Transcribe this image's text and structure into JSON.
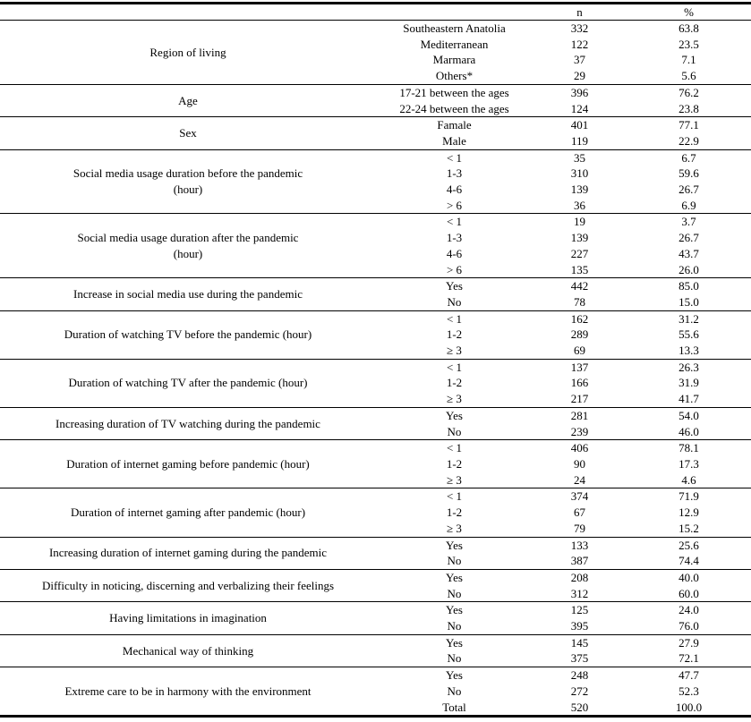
{
  "table": {
    "header": {
      "col_n": "n",
      "col_pct": "%"
    },
    "groups": [
      {
        "category": "Region of living",
        "rows": [
          {
            "label": "Southeastern Anatolia",
            "n": "332",
            "pct": "63.8"
          },
          {
            "label": "Mediterranean",
            "n": "122",
            "pct": "23.5"
          },
          {
            "label": "Marmara",
            "n": "37",
            "pct": "7.1"
          },
          {
            "label": "Others*",
            "n": "29",
            "pct": "5.6"
          }
        ]
      },
      {
        "category": "Age",
        "rows": [
          {
            "label": "17-21 between the ages",
            "n": "396",
            "pct": "76.2"
          },
          {
            "label": "22-24 between the ages",
            "n": "124",
            "pct": "23.8"
          }
        ]
      },
      {
        "category": "Sex",
        "rows": [
          {
            "label": "Famale",
            "n": "401",
            "pct": "77.1"
          },
          {
            "label": "Male",
            "n": "119",
            "pct": "22.9"
          }
        ]
      },
      {
        "category": "Social media usage duration before the pandemic\n(hour)",
        "rows": [
          {
            "label": "< 1",
            "n": "35",
            "pct": "6.7"
          },
          {
            "label": "1-3",
            "n": "310",
            "pct": "59.6"
          },
          {
            "label": "4-6",
            "n": "139",
            "pct": "26.7"
          },
          {
            "label": "> 6",
            "n": "36",
            "pct": "6.9"
          }
        ]
      },
      {
        "category": "Social media usage duration after the pandemic\n(hour)",
        "rows": [
          {
            "label": "< 1",
            "n": "19",
            "pct": "3.7"
          },
          {
            "label": "1-3",
            "n": "139",
            "pct": "26.7"
          },
          {
            "label": "4-6",
            "n": "227",
            "pct": "43.7"
          },
          {
            "label": "> 6",
            "n": "135",
            "pct": "26.0"
          }
        ]
      },
      {
        "category": "Increase in social media use during the pandemic",
        "rows": [
          {
            "label": "Yes",
            "n": "442",
            "pct": "85.0"
          },
          {
            "label": "No",
            "n": "78",
            "pct": "15.0"
          }
        ]
      },
      {
        "category": "Duration of watching TV before the pandemic (hour)",
        "rows": [
          {
            "label": "< 1",
            "n": "162",
            "pct": "31.2"
          },
          {
            "label": "1-2",
            "n": "289",
            "pct": "55.6"
          },
          {
            "label": "≥ 3",
            "n": "69",
            "pct": "13.3"
          }
        ]
      },
      {
        "category": "Duration of watching TV after the pandemic (hour)",
        "rows": [
          {
            "label": "< 1",
            "n": "137",
            "pct": "26.3"
          },
          {
            "label": "1-2",
            "n": "166",
            "pct": "31.9"
          },
          {
            "label": "≥ 3",
            "n": "217",
            "pct": "41.7"
          }
        ]
      },
      {
        "category": "Increasing duration of TV watching during the pandemic",
        "rows": [
          {
            "label": "Yes",
            "n": "281",
            "pct": "54.0"
          },
          {
            "label": "No",
            "n": "239",
            "pct": "46.0"
          }
        ]
      },
      {
        "category": "Duration of internet gaming before pandemic (hour)",
        "rows": [
          {
            "label": "< 1",
            "n": "406",
            "pct": "78.1"
          },
          {
            "label": "1-2",
            "n": "90",
            "pct": "17.3"
          },
          {
            "label": "≥ 3",
            "n": "24",
            "pct": "4.6"
          }
        ]
      },
      {
        "category": "Duration of internet gaming after pandemic (hour)",
        "rows": [
          {
            "label": "< 1",
            "n": "374",
            "pct": "71.9"
          },
          {
            "label": "1-2",
            "n": "67",
            "pct": "12.9"
          },
          {
            "label": "≥ 3",
            "n": "79",
            "pct": "15.2"
          }
        ]
      },
      {
        "category": "Increasing duration of internet gaming during the pandemic",
        "rows": [
          {
            "label": "Yes",
            "n": "133",
            "pct": "25.6"
          },
          {
            "label": "No",
            "n": "387",
            "pct": "74.4"
          }
        ]
      },
      {
        "category": "Difficulty in noticing, discerning and verbalizing their feelings",
        "rows": [
          {
            "label": "Yes",
            "n": "208",
            "pct": "40.0"
          },
          {
            "label": "No",
            "n": "312",
            "pct": "60.0"
          }
        ]
      },
      {
        "category": "Having limitations in imagination",
        "rows": [
          {
            "label": "Yes",
            "n": "125",
            "pct": "24.0"
          },
          {
            "label": "No",
            "n": "395",
            "pct": "76.0"
          }
        ]
      },
      {
        "category": "Mechanical way of thinking",
        "rows": [
          {
            "label": "Yes",
            "n": "145",
            "pct": "27.9"
          },
          {
            "label": "No",
            "n": "375",
            "pct": "72.1"
          }
        ]
      },
      {
        "category": "Extreme care to be in harmony with the environment",
        "rows": [
          {
            "label": "Yes",
            "n": "248",
            "pct": "47.7"
          },
          {
            "label": "No",
            "n": "272",
            "pct": "52.3"
          },
          {
            "label": "Total",
            "n": "520",
            "pct": "100.0"
          }
        ]
      }
    ]
  }
}
